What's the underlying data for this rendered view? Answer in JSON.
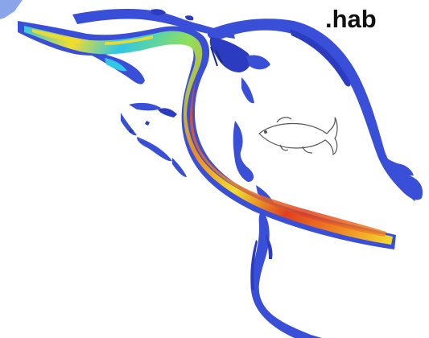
{
  "figure": {
    "label": ".hab",
    "colors": {
      "background": "#ffffff",
      "channel_low": "#3a4fd8",
      "channel_low_dark": "#2b3cc0",
      "channel_mid_cyan": "#2fc7e6",
      "channel_mid_green": "#8fe05a",
      "channel_high_yellow": "#f2dc2e",
      "channel_max_orange": "#f08a24",
      "channel_max_red": "#e0401e",
      "fish_outline": "#555555",
      "label_text": "#111111"
    },
    "icons": {
      "fish": "fish-icon"
    },
    "legend": "none"
  }
}
